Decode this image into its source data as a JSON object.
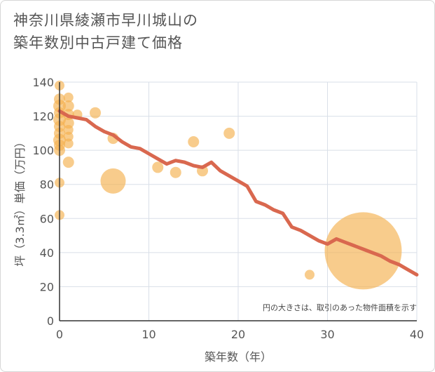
{
  "title_line1": "神奈川県綾瀬市早川城山の",
  "title_line2": "築年数別中古戸建て価格",
  "chart_data": {
    "type": "scatter",
    "title": "神奈川県綾瀬市早川城山の築年数別中古戸建て価格",
    "xlabel": "築年数（年）",
    "ylabel": "坪（3.3㎡）単価（万円）",
    "xlim": [
      0,
      40
    ],
    "ylim": [
      0,
      140
    ],
    "x_ticks": [
      "0",
      "10",
      "20",
      "30",
      "40"
    ],
    "y_ticks": [
      "0",
      "20",
      "40",
      "60",
      "80",
      "100",
      "120",
      "140"
    ],
    "note": "円の大きさは、取引のあった物件面積を示す",
    "colors": {
      "bubble": "#f5b04f",
      "trend": "#d9684f",
      "grid": "#d9dfe8"
    },
    "scatter_points": [
      {
        "x": 0,
        "y": 138,
        "r": 7
      },
      {
        "x": 0,
        "y": 130,
        "r": 8
      },
      {
        "x": 0,
        "y": 126,
        "r": 9
      },
      {
        "x": 0,
        "y": 122,
        "r": 8
      },
      {
        "x": 0,
        "y": 118,
        "r": 9
      },
      {
        "x": 0,
        "y": 114,
        "r": 8
      },
      {
        "x": 0,
        "y": 110,
        "r": 8
      },
      {
        "x": 0,
        "y": 106,
        "r": 9
      },
      {
        "x": 0,
        "y": 103,
        "r": 8
      },
      {
        "x": 0,
        "y": 100,
        "r": 8
      },
      {
        "x": 0,
        "y": 81,
        "r": 7
      },
      {
        "x": 0,
        "y": 62,
        "r": 7
      },
      {
        "x": 1,
        "y": 131,
        "r": 7
      },
      {
        "x": 1,
        "y": 126,
        "r": 8
      },
      {
        "x": 1,
        "y": 121,
        "r": 8
      },
      {
        "x": 1,
        "y": 116,
        "r": 8
      },
      {
        "x": 1,
        "y": 112,
        "r": 7
      },
      {
        "x": 1,
        "y": 108,
        "r": 7
      },
      {
        "x": 1,
        "y": 104,
        "r": 7
      },
      {
        "x": 1,
        "y": 93,
        "r": 8
      },
      {
        "x": 2,
        "y": 121,
        "r": 7
      },
      {
        "x": 4,
        "y": 122,
        "r": 8
      },
      {
        "x": 6,
        "y": 107,
        "r": 8
      },
      {
        "x": 6,
        "y": 82,
        "r": 18
      },
      {
        "x": 11,
        "y": 90,
        "r": 8
      },
      {
        "x": 13,
        "y": 87,
        "r": 8
      },
      {
        "x": 15,
        "y": 105,
        "r": 8
      },
      {
        "x": 16,
        "y": 88,
        "r": 8
      },
      {
        "x": 19,
        "y": 110,
        "r": 8
      },
      {
        "x": 28,
        "y": 27,
        "r": 7
      },
      {
        "x": 34,
        "y": 41,
        "r": 55
      }
    ],
    "trend_line": {
      "x": [
        0,
        1,
        2,
        3,
        4,
        5,
        6,
        7,
        8,
        9,
        10,
        11,
        12,
        13,
        14,
        15,
        16,
        17,
        18,
        19,
        20,
        21,
        22,
        23,
        24,
        25,
        26,
        27,
        28,
        29,
        30,
        31,
        32,
        33,
        34,
        35,
        36,
        37,
        38,
        39,
        40
      ],
      "y": [
        123,
        120,
        119,
        118,
        114,
        111,
        109,
        105,
        102,
        101,
        98,
        95,
        92,
        94,
        93,
        91,
        90,
        93,
        88,
        85,
        82,
        79,
        70,
        68,
        65,
        63,
        55,
        53,
        50,
        47,
        45,
        48,
        46,
        44,
        42,
        40,
        38,
        35,
        33,
        30,
        27
      ]
    }
  }
}
